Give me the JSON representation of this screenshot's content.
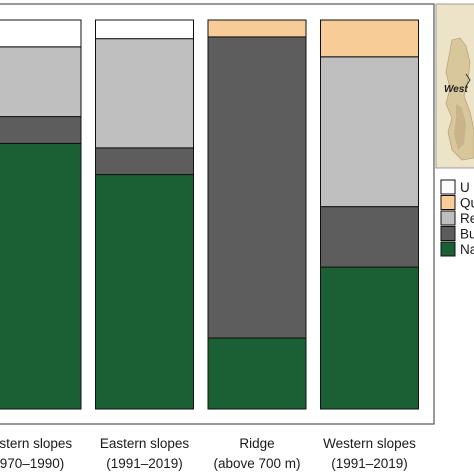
{
  "chart_data": {
    "type": "bar",
    "stacked": true,
    "normalized": true,
    "categories": [
      [
        "astern slopes",
        "970–1990)"
      ],
      [
        "Eastern slopes",
        "(1991–2019)"
      ],
      [
        "Ridge",
        "(above 700 m)"
      ],
      [
        "Western slopes",
        "(1991–2019)"
      ]
    ],
    "series": [
      {
        "name": "Na",
        "color": "#1b6035",
        "values": [
          0.99,
          0.88,
          0.21,
          0.54
        ]
      },
      {
        "name": "Bu",
        "color": "#5d5d5d",
        "values": [
          0.1,
          0.1,
          0.89,
          0.23
        ]
      },
      {
        "name": "Re",
        "color": "#c0bfc0",
        "values": [
          0.26,
          0.41,
          0.0,
          0.57
        ]
      },
      {
        "name": "Qu",
        "color": "#f8cc96",
        "values": [
          0.0,
          0.0,
          0.05,
          0.14
        ]
      },
      {
        "name": "U",
        "color": "#ffffff",
        "values": [
          0.1,
          0.07,
          0.0,
          0.0
        ]
      }
    ],
    "legend_position": "right",
    "grid": false
  },
  "inset_map": {
    "label": "West"
  }
}
